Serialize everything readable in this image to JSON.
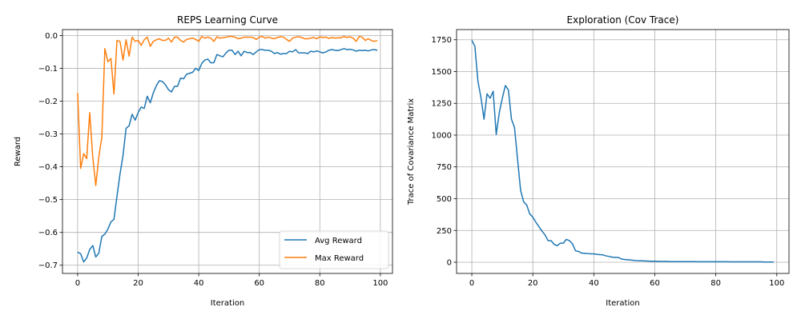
{
  "colors": {
    "blue": "#1f77b4",
    "orange": "#ff7f0e",
    "grid": "#b0b0b0"
  },
  "chart_data": [
    {
      "type": "line",
      "title": "REPS Learning Curve",
      "xlabel": "Iteration",
      "ylabel": "Reward",
      "xlim": [
        -5,
        104
      ],
      "ylim": [
        -0.725,
        0.018
      ],
      "xticks": [
        0,
        20,
        40,
        60,
        80,
        100
      ],
      "yticks": [
        0.0,
        -0.1,
        -0.2,
        -0.3,
        -0.4,
        -0.5,
        -0.6,
        -0.7
      ],
      "ytick_labels": [
        "0.0",
        "−0.1",
        "−0.2",
        "−0.3",
        "−0.4",
        "−0.5",
        "−0.6",
        "−0.7"
      ],
      "grid": true,
      "legend": "lower-right",
      "series": [
        {
          "name": "Avg Reward",
          "color": "#1f77b4",
          "y": [
            -0.66,
            -0.665,
            -0.69,
            -0.678,
            -0.652,
            -0.64,
            -0.675,
            -0.663,
            -0.612,
            -0.605,
            -0.59,
            -0.568,
            -0.56,
            -0.49,
            -0.422,
            -0.365,
            -0.283,
            -0.275,
            -0.24,
            -0.258,
            -0.235,
            -0.218,
            -0.222,
            -0.185,
            -0.205,
            -0.175,
            -0.153,
            -0.138,
            -0.14,
            -0.15,
            -0.165,
            -0.172,
            -0.155,
            -0.155,
            -0.13,
            -0.132,
            -0.118,
            -0.115,
            -0.112,
            -0.1,
            -0.107,
            -0.085,
            -0.075,
            -0.072,
            -0.083,
            -0.083,
            -0.058,
            -0.062,
            -0.065,
            -0.053,
            -0.045,
            -0.045,
            -0.058,
            -0.048,
            -0.062,
            -0.048,
            -0.052,
            -0.052,
            -0.058,
            -0.05,
            -0.043,
            -0.043,
            -0.045,
            -0.045,
            -0.048,
            -0.055,
            -0.052,
            -0.057,
            -0.055,
            -0.055,
            -0.048,
            -0.05,
            -0.043,
            -0.053,
            -0.053,
            -0.053,
            -0.055,
            -0.048,
            -0.05,
            -0.047,
            -0.05,
            -0.053,
            -0.05,
            -0.045,
            -0.043,
            -0.045,
            -0.046,
            -0.043,
            -0.04,
            -0.043,
            -0.042,
            -0.044,
            -0.048,
            -0.045,
            -0.046,
            -0.045,
            -0.047,
            -0.044,
            -0.043,
            -0.045
          ]
        },
        {
          "name": "Max Reward",
          "color": "#ff7f0e",
          "y": [
            -0.175,
            -0.405,
            -0.36,
            -0.375,
            -0.235,
            -0.37,
            -0.457,
            -0.37,
            -0.31,
            -0.04,
            -0.08,
            -0.07,
            -0.178,
            -0.015,
            -0.018,
            -0.075,
            -0.013,
            -0.063,
            -0.005,
            -0.018,
            -0.015,
            -0.03,
            -0.013,
            -0.005,
            -0.033,
            -0.018,
            -0.013,
            -0.01,
            -0.015,
            -0.015,
            -0.008,
            -0.02,
            -0.005,
            -0.005,
            -0.015,
            -0.02,
            -0.012,
            -0.01,
            -0.008,
            -0.012,
            -0.018,
            -0.003,
            -0.008,
            -0.005,
            -0.008,
            -0.018,
            -0.004,
            -0.008,
            -0.007,
            -0.005,
            -0.003,
            -0.003,
            -0.005,
            -0.01,
            -0.008,
            -0.005,
            -0.005,
            -0.005,
            -0.006,
            -0.012,
            -0.005,
            -0.003,
            -0.008,
            -0.005,
            -0.008,
            -0.01,
            -0.006,
            -0.004,
            -0.005,
            -0.012,
            -0.018,
            -0.008,
            -0.005,
            -0.004,
            -0.006,
            -0.01,
            -0.01,
            -0.008,
            -0.006,
            -0.01,
            -0.004,
            -0.006,
            -0.005,
            -0.009,
            -0.006,
            -0.008,
            -0.007,
            -0.007,
            -0.003,
            -0.006,
            -0.004,
            -0.008,
            -0.018,
            -0.003,
            -0.005,
            -0.015,
            -0.01,
            -0.015,
            -0.018,
            -0.015
          ]
        }
      ]
    },
    {
      "type": "line",
      "title": "Exploration (Cov Trace)",
      "xlabel": "Iteration",
      "ylabel": "Trace of Covariance Matrix",
      "xlim": [
        -5,
        104
      ],
      "ylim": [
        -88,
        1830
      ],
      "xticks": [
        0,
        20,
        40,
        60,
        80,
        100
      ],
      "yticks": [
        0,
        250,
        500,
        750,
        1000,
        1250,
        1500,
        1750
      ],
      "ytick_labels": [
        "0",
        "250",
        "500",
        "750",
        "1000",
        "1250",
        "1500",
        "1750"
      ],
      "grid": true,
      "series": [
        {
          "color": "#1f77b4",
          "y": [
            1745,
            1700,
            1425,
            1295,
            1125,
            1325,
            1290,
            1345,
            1005,
            1175,
            1290,
            1390,
            1355,
            1125,
            1060,
            810,
            565,
            475,
            450,
            380,
            355,
            315,
            280,
            245,
            215,
            170,
            170,
            140,
            130,
            150,
            150,
            180,
            170,
            145,
            90,
            85,
            72,
            70,
            68,
            66,
            66,
            62,
            60,
            58,
            50,
            46,
            40,
            38,
            38,
            26,
            22,
            20,
            18,
            15,
            13,
            12,
            11,
            10,
            9,
            8,
            8,
            7,
            6,
            6,
            6,
            5,
            5,
            5,
            5,
            5,
            5,
            5,
            5,
            5,
            4,
            4,
            4,
            4,
            4,
            4,
            4,
            4,
            4,
            4,
            4,
            3,
            3,
            3,
            3,
            3,
            3,
            3,
            3,
            3,
            3,
            3,
            2,
            2,
            2,
            2
          ]
        }
      ]
    }
  ]
}
